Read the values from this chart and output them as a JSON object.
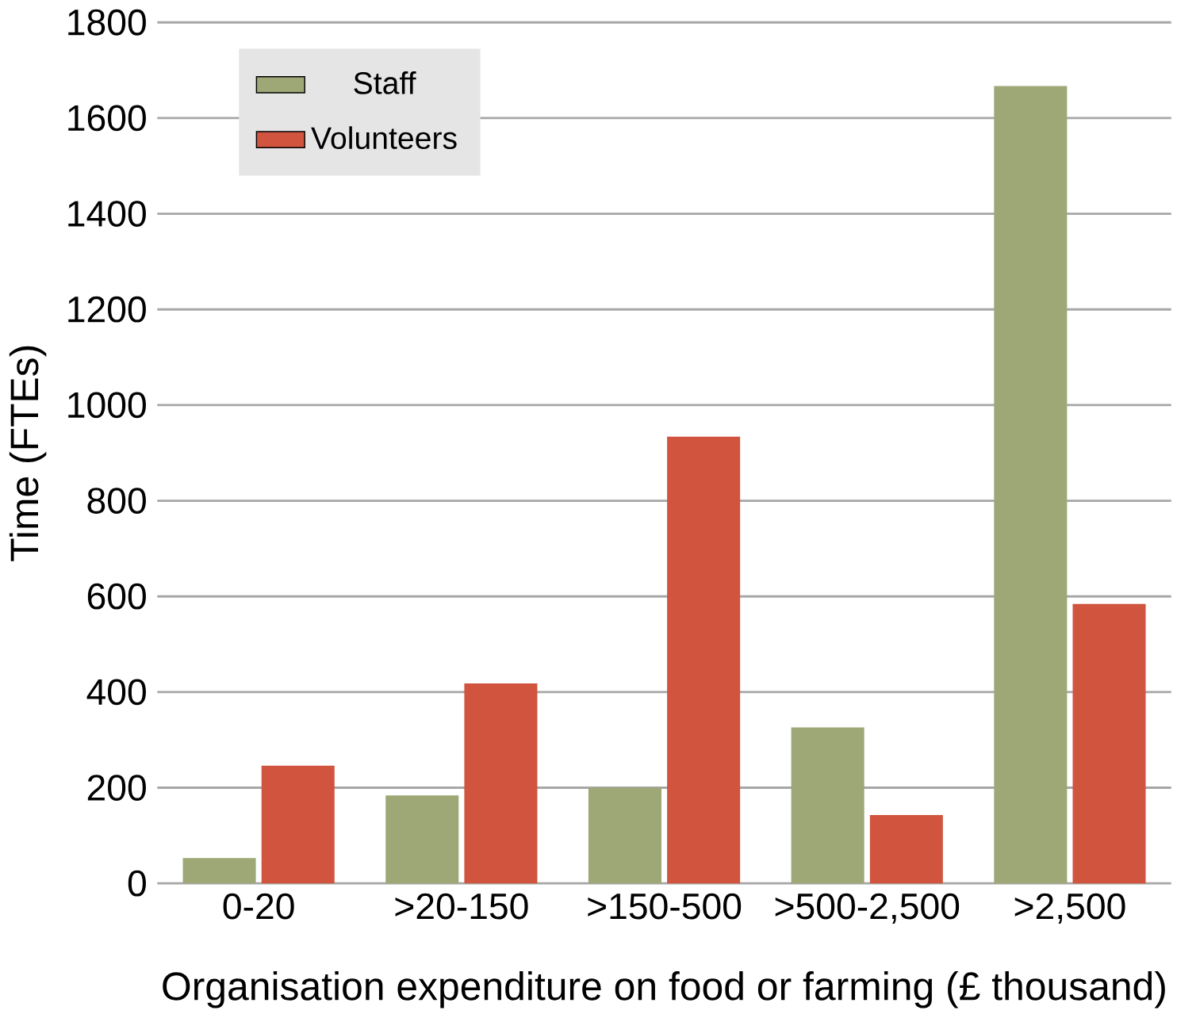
{
  "chart_data": {
    "type": "bar",
    "xlabel": "Organisation expenditure on food or farming (£ thousand)",
    "ylabel": "Time (FTEs)",
    "categories": [
      "0-20",
      ">20-150",
      ">150-500",
      ">500-2,500",
      ">2,500"
    ],
    "series": [
      {
        "name": "Staff",
        "color": "#9da876",
        "values": [
          53,
          184,
          200,
          326,
          1667
        ]
      },
      {
        "name": "Volunteers",
        "color": "#d0543e",
        "values": [
          246,
          418,
          934,
          143,
          584
        ]
      }
    ],
    "ylim": [
      0,
      1800
    ],
    "yticks": [
      0,
      200,
      400,
      600,
      800,
      1000,
      1200,
      1400,
      1600,
      1800
    ],
    "grid": "y",
    "legend": "top left"
  }
}
